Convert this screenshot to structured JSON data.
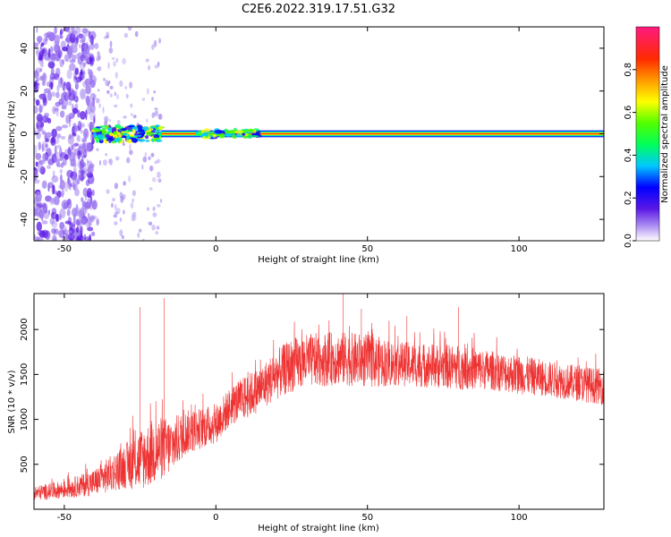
{
  "title": "C2E6.2022.319.17.51.G32",
  "chart_data": [
    {
      "type": "heatmap",
      "xlabel": "Height of straight line (km)",
      "ylabel": "Frequency (Hz)",
      "xlim": [
        -60,
        128
      ],
      "ylim": [
        -50,
        50
      ],
      "xticks": [
        -50,
        0,
        50,
        100
      ],
      "yticks": [
        -40,
        -20,
        0,
        20,
        40
      ],
      "colorbar": {
        "label": "Normalized spectral amplitude",
        "range": [
          0,
          1
        ],
        "ticks": [
          "0.0",
          "0.2",
          "0.4",
          "0.6",
          "0.8"
        ],
        "colors": [
          "#ffffff",
          "#a07ef0",
          "#5a18e6",
          "#0000ff",
          "#00c8ff",
          "#00ff5a",
          "#50ff00",
          "#ffff00",
          "#ff9a00",
          "#ff2a00",
          "#ff1a80"
        ]
      },
      "features": {
        "carrier_band": {
          "x_start": -18,
          "x_end": 128,
          "frequency": 0,
          "amplitude": 0.85
        },
        "noise_region": {
          "x_start": -60,
          "x_end": -40,
          "frequency_range": [
            -50,
            50
          ],
          "amplitude": 0.3
        },
        "weak_region": {
          "x_start": -40,
          "x_end": -18,
          "amplitude": 0.5
        }
      }
    },
    {
      "type": "line",
      "xlabel": "Height of straight line (km)",
      "ylabel": "SNR (10 * v/v)",
      "xlim": [
        -60,
        128
      ],
      "ylim": [
        0,
        2400
      ],
      "xticks": [
        -50,
        0,
        50,
        100
      ],
      "yticks": [
        500,
        1000,
        1500,
        2000
      ],
      "color": "#ee3333",
      "envelope": {
        "x": [
          -60,
          -50,
          -40,
          -30,
          -25,
          -20,
          -15,
          -10,
          -5,
          0,
          5,
          10,
          15,
          20,
          25,
          30,
          40,
          50,
          60,
          70,
          80,
          90,
          100,
          110,
          120,
          128
        ],
        "mean": [
          180,
          220,
          300,
          480,
          550,
          650,
          700,
          850,
          900,
          950,
          1150,
          1250,
          1350,
          1500,
          1600,
          1650,
          1680,
          1650,
          1620,
          1600,
          1580,
          1550,
          1500,
          1450,
          1400,
          1360
        ],
        "amp": [
          80,
          100,
          150,
          250,
          350,
          380,
          320,
          250,
          230,
          220,
          220,
          250,
          250,
          280,
          300,
          300,
          300,
          300,
          250,
          250,
          250,
          220,
          220,
          200,
          200,
          200
        ]
      },
      "spikes": [
        {
          "x": -25,
          "y": 2250
        },
        {
          "x": -17,
          "y": 2350
        },
        {
          "x": 42,
          "y": 2400
        },
        {
          "x": 48,
          "y": 2230
        },
        {
          "x": 63,
          "y": 2150
        },
        {
          "x": 80,
          "y": 2250
        }
      ]
    }
  ]
}
